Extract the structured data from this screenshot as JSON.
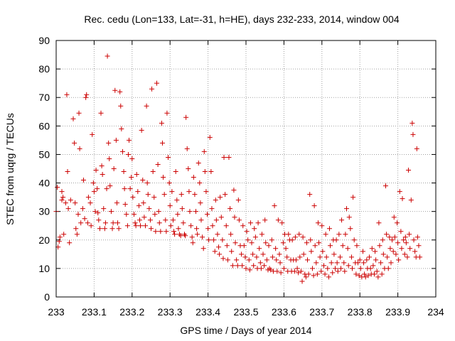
{
  "chart_data": {
    "type": "scatter",
    "title": "Rec. cedu (Lon=133, Lat=-31, h=HE), days 232-233, 2014, window 004",
    "xlabel": "GPS time / Days of year 2014",
    "ylabel": "STEC from uqrg / TECUs",
    "xlim": [
      233,
      234
    ],
    "ylim": [
      0,
      90
    ],
    "xticks": [
      233,
      233.1,
      233.2,
      233.3,
      233.4,
      233.5,
      233.6,
      233.7,
      233.8,
      233.9,
      234
    ],
    "xtick_labels": [
      "233",
      "233.1",
      "233.2",
      "233.3",
      "233.4",
      "233.5",
      "233.6",
      "233.7",
      "233.8",
      "233.9",
      "234"
    ],
    "yticks": [
      0,
      10,
      20,
      30,
      40,
      50,
      60,
      70,
      80,
      90
    ],
    "ytick_labels": [
      "0",
      "10",
      "20",
      "30",
      "40",
      "50",
      "60",
      "70",
      "80",
      "90"
    ],
    "grid": true,
    "marker": "plus",
    "marker_color": "#cc0000",
    "points": [
      [
        233.0,
        30
      ],
      [
        233.003,
        38.5
      ],
      [
        233.005,
        17.5
      ],
      [
        233.008,
        19.5
      ],
      [
        233.01,
        21
      ],
      [
        233.015,
        37
      ],
      [
        233.015,
        34
      ],
      [
        233.018,
        35
      ],
      [
        233.02,
        22
      ],
      [
        233.025,
        33
      ],
      [
        233.028,
        71
      ],
      [
        233.03,
        44
      ],
      [
        233.032,
        31
      ],
      [
        233.035,
        19
      ],
      [
        233.038,
        34
      ],
      [
        233.045,
        62.5
      ],
      [
        233.048,
        54
      ],
      [
        233.05,
        33
      ],
      [
        233.052,
        24
      ],
      [
        233.055,
        22
      ],
      [
        233.058,
        29
      ],
      [
        233.06,
        64.5
      ],
      [
        233.062,
        52
      ],
      [
        233.065,
        26
      ],
      [
        233.07,
        31
      ],
      [
        233.072,
        41
      ],
      [
        233.075,
        27.5
      ],
      [
        233.078,
        70
      ],
      [
        233.08,
        71
      ],
      [
        233.083,
        26
      ],
      [
        233.085,
        35
      ],
      [
        233.09,
        33
      ],
      [
        233.092,
        25
      ],
      [
        233.095,
        57
      ],
      [
        233.098,
        40
      ],
      [
        233.1,
        37
      ],
      [
        233.103,
        30
      ],
      [
        233.105,
        44.5
      ],
      [
        233.108,
        38
      ],
      [
        233.11,
        29.5
      ],
      [
        233.112,
        27
      ],
      [
        233.115,
        24
      ],
      [
        233.118,
        64.5
      ],
      [
        233.12,
        46
      ],
      [
        233.122,
        43
      ],
      [
        233.125,
        31
      ],
      [
        233.128,
        24
      ],
      [
        233.13,
        26
      ],
      [
        233.133,
        38
      ],
      [
        233.135,
        84.5
      ],
      [
        233.138,
        54
      ],
      [
        233.14,
        48.5
      ],
      [
        233.142,
        39
      ],
      [
        233.145,
        30
      ],
      [
        233.148,
        24
      ],
      [
        233.15,
        26
      ],
      [
        233.152,
        45
      ],
      [
        233.155,
        72.5
      ],
      [
        233.158,
        55
      ],
      [
        233.16,
        33
      ],
      [
        233.162,
        26
      ],
      [
        233.165,
        24
      ],
      [
        233.168,
        72
      ],
      [
        233.17,
        67
      ],
      [
        233.172,
        59
      ],
      [
        233.175,
        51
      ],
      [
        233.178,
        44
      ],
      [
        233.18,
        38
      ],
      [
        233.182,
        32.5
      ],
      [
        233.185,
        29
      ],
      [
        233.188,
        25
      ],
      [
        233.19,
        50
      ],
      [
        233.192,
        55
      ],
      [
        233.195,
        38
      ],
      [
        233.198,
        42
      ],
      [
        233.2,
        48.5
      ],
      [
        233.202,
        35
      ],
      [
        233.205,
        29
      ],
      [
        233.208,
        26
      ],
      [
        233.21,
        25
      ],
      [
        233.212,
        43
      ],
      [
        233.215,
        37
      ],
      [
        233.218,
        32
      ],
      [
        233.22,
        27
      ],
      [
        233.222,
        25
      ],
      [
        233.225,
        58.5
      ],
      [
        233.228,
        41
      ],
      [
        233.23,
        33
      ],
      [
        233.232,
        28
      ],
      [
        233.235,
        25
      ],
      [
        233.238,
        67
      ],
      [
        233.24,
        40
      ],
      [
        233.242,
        36
      ],
      [
        233.245,
        31
      ],
      [
        233.248,
        27
      ],
      [
        233.25,
        24
      ],
      [
        233.252,
        73
      ],
      [
        233.255,
        44
      ],
      [
        233.258,
        35
      ],
      [
        233.26,
        29
      ],
      [
        233.262,
        23
      ],
      [
        233.265,
        75
      ],
      [
        233.268,
        46.5
      ],
      [
        233.27,
        30
      ],
      [
        233.272,
        26
      ],
      [
        233.275,
        23
      ],
      [
        233.278,
        61
      ],
      [
        233.28,
        54
      ],
      [
        233.282,
        42
      ],
      [
        233.285,
        36
      ],
      [
        233.288,
        27
      ],
      [
        233.29,
        23
      ],
      [
        233.292,
        64.5
      ],
      [
        233.295,
        49
      ],
      [
        233.298,
        40
      ],
      [
        233.3,
        32
      ],
      [
        233.302,
        25
      ],
      [
        233.305,
        37
      ],
      [
        233.308,
        27
      ],
      [
        233.31,
        23
      ],
      [
        233.312,
        22
      ],
      [
        233.315,
        44
      ],
      [
        233.318,
        34
      ],
      [
        233.32,
        29
      ],
      [
        233.322,
        24
      ],
      [
        233.325,
        22
      ],
      [
        233.328,
        21.5
      ],
      [
        233.33,
        36
      ],
      [
        233.332,
        31
      ],
      [
        233.335,
        26
      ],
      [
        233.338,
        22
      ],
      [
        233.34,
        21.5
      ],
      [
        233.342,
        63
      ],
      [
        233.345,
        52
      ],
      [
        233.348,
        45
      ],
      [
        233.35,
        37
      ],
      [
        233.352,
        30
      ],
      [
        233.355,
        25
      ],
      [
        233.358,
        21
      ],
      [
        233.36,
        19
      ],
      [
        233.362,
        42
      ],
      [
        233.365,
        36
      ],
      [
        233.368,
        30
      ],
      [
        233.37,
        24
      ],
      [
        233.372,
        22
      ],
      [
        233.375,
        47
      ],
      [
        233.378,
        40
      ],
      [
        233.38,
        33
      ],
      [
        233.382,
        27
      ],
      [
        233.385,
        21
      ],
      [
        233.388,
        17
      ],
      [
        233.39,
        51
      ],
      [
        233.392,
        44
      ],
      [
        233.395,
        37
      ],
      [
        233.398,
        29
      ],
      [
        233.4,
        24
      ],
      [
        233.402,
        20
      ],
      [
        233.405,
        56
      ],
      [
        233.408,
        44
      ],
      [
        233.41,
        31
      ],
      [
        233.412,
        25
      ],
      [
        233.415,
        20
      ],
      [
        233.418,
        16
      ],
      [
        233.42,
        34
      ],
      [
        233.422,
        27
      ],
      [
        233.425,
        22
      ],
      [
        233.428,
        17.5
      ],
      [
        233.43,
        15
      ],
      [
        233.432,
        35
      ],
      [
        233.435,
        28
      ],
      [
        233.438,
        20
      ],
      [
        233.44,
        13.5
      ],
      [
        233.442,
        49
      ],
      [
        233.445,
        36
      ],
      [
        233.448,
        25
      ],
      [
        233.45,
        18
      ],
      [
        233.452,
        13
      ],
      [
        233.455,
        49
      ],
      [
        233.458,
        31
      ],
      [
        233.46,
        22
      ],
      [
        233.462,
        16
      ],
      [
        233.465,
        11
      ],
      [
        233.468,
        37.5
      ],
      [
        233.47,
        28
      ],
      [
        233.472,
        19
      ],
      [
        233.475,
        13
      ],
      [
        233.478,
        11
      ],
      [
        233.48,
        34
      ],
      [
        233.482,
        27
      ],
      [
        233.485,
        18
      ],
      [
        233.488,
        15
      ],
      [
        233.49,
        11
      ],
      [
        233.492,
        25
      ],
      [
        233.495,
        18
      ],
      [
        233.498,
        14
      ],
      [
        233.5,
        10
      ],
      [
        233.502,
        23
      ],
      [
        233.505,
        20
      ],
      [
        233.508,
        13
      ],
      [
        233.51,
        9.5
      ],
      [
        233.512,
        26
      ],
      [
        233.515,
        19
      ],
      [
        233.518,
        15
      ],
      [
        233.52,
        11
      ],
      [
        233.522,
        24
      ],
      [
        233.525,
        21
      ],
      [
        233.528,
        14
      ],
      [
        233.53,
        10
      ],
      [
        233.532,
        26
      ],
      [
        233.535,
        17
      ],
      [
        233.538,
        12
      ],
      [
        233.54,
        10
      ],
      [
        233.542,
        22
      ],
      [
        233.545,
        15
      ],
      [
        233.548,
        11
      ],
      [
        233.55,
        27
      ],
      [
        233.552,
        19
      ],
      [
        233.555,
        13
      ],
      [
        233.558,
        9.5
      ],
      [
        233.56,
        18
      ],
      [
        233.562,
        10
      ],
      [
        233.565,
        9.5
      ],
      [
        233.568,
        20
      ],
      [
        233.57,
        14
      ],
      [
        233.572,
        9
      ],
      [
        233.575,
        32
      ],
      [
        233.578,
        17
      ],
      [
        233.58,
        13
      ],
      [
        233.582,
        9
      ],
      [
        233.585,
        27
      ],
      [
        233.588,
        15
      ],
      [
        233.59,
        12
      ],
      [
        233.592,
        8.5
      ],
      [
        233.595,
        26
      ],
      [
        233.598,
        19
      ],
      [
        233.6,
        10
      ],
      [
        233.602,
        22
      ],
      [
        233.605,
        17
      ],
      [
        233.608,
        14
      ],
      [
        233.61,
        9
      ],
      [
        233.612,
        22
      ],
      [
        233.615,
        20
      ],
      [
        233.618,
        13
      ],
      [
        233.62,
        9
      ],
      [
        233.622,
        20
      ],
      [
        233.625,
        13
      ],
      [
        233.628,
        9
      ],
      [
        233.63,
        21
      ],
      [
        233.632,
        13
      ],
      [
        233.635,
        10
      ],
      [
        233.638,
        8.5
      ],
      [
        233.64,
        22
      ],
      [
        233.642,
        14
      ],
      [
        233.645,
        9
      ],
      [
        233.648,
        5.5
      ],
      [
        233.65,
        21
      ],
      [
        233.652,
        15
      ],
      [
        233.655,
        8
      ],
      [
        233.658,
        7
      ],
      [
        233.66,
        19
      ],
      [
        233.662,
        13
      ],
      [
        233.665,
        8
      ],
      [
        233.668,
        36
      ],
      [
        233.67,
        20
      ],
      [
        233.672,
        16
      ],
      [
        233.675,
        10
      ],
      [
        233.678,
        7.5
      ],
      [
        233.68,
        32
      ],
      [
        233.682,
        18
      ],
      [
        233.685,
        12
      ],
      [
        233.688,
        8
      ],
      [
        233.69,
        26
      ],
      [
        233.692,
        19
      ],
      [
        233.695,
        14
      ],
      [
        233.698,
        9
      ],
      [
        233.7,
        25
      ],
      [
        233.702,
        16
      ],
      [
        233.705,
        11
      ],
      [
        233.708,
        8
      ],
      [
        233.71,
        22
      ],
      [
        233.712,
        14
      ],
      [
        233.715,
        10
      ],
      [
        233.718,
        7
      ],
      [
        233.72,
        24
      ],
      [
        233.722,
        18
      ],
      [
        233.725,
        12
      ],
      [
        233.728,
        8.5
      ],
      [
        233.73,
        20
      ],
      [
        233.732,
        15
      ],
      [
        233.735,
        10
      ],
      [
        233.738,
        20
      ],
      [
        233.74,
        12
      ],
      [
        233.742,
        9
      ],
      [
        233.745,
        22
      ],
      [
        233.748,
        14
      ],
      [
        233.75,
        10
      ],
      [
        233.752,
        27
      ],
      [
        233.755,
        18
      ],
      [
        233.758,
        12
      ],
      [
        233.76,
        9
      ],
      [
        233.762,
        22
      ],
      [
        233.765,
        31
      ],
      [
        233.768,
        17
      ],
      [
        233.77,
        11
      ],
      [
        233.772,
        28
      ],
      [
        233.775,
        24
      ],
      [
        233.778,
        14
      ],
      [
        233.78,
        10
      ],
      [
        233.782,
        35
      ],
      [
        233.785,
        20
      ],
      [
        233.788,
        12
      ],
      [
        233.79,
        8
      ],
      [
        233.792,
        18
      ],
      [
        233.795,
        12
      ],
      [
        233.798,
        7.5
      ],
      [
        233.8,
        13
      ],
      [
        233.802,
        10
      ],
      [
        233.805,
        7
      ],
      [
        233.808,
        16
      ],
      [
        233.81,
        12
      ],
      [
        233.812,
        8
      ],
      [
        233.815,
        7
      ],
      [
        233.818,
        13
      ],
      [
        233.82,
        10
      ],
      [
        233.822,
        7.5
      ],
      [
        233.825,
        14
      ],
      [
        233.828,
        10
      ],
      [
        233.83,
        8
      ],
      [
        233.832,
        17
      ],
      [
        233.835,
        11
      ],
      [
        233.838,
        8
      ],
      [
        233.84,
        16
      ],
      [
        233.842,
        13
      ],
      [
        233.845,
        9
      ],
      [
        233.848,
        7
      ],
      [
        233.85,
        26
      ],
      [
        233.852,
        18
      ],
      [
        233.855,
        12
      ],
      [
        233.858,
        8
      ],
      [
        233.86,
        20
      ],
      [
        233.862,
        15
      ],
      [
        233.865,
        10
      ],
      [
        233.868,
        39
      ],
      [
        233.87,
        22
      ],
      [
        233.872,
        14
      ],
      [
        233.875,
        10
      ],
      [
        233.878,
        21
      ],
      [
        233.88,
        17
      ],
      [
        233.882,
        12
      ],
      [
        233.885,
        20
      ],
      [
        233.888,
        16
      ],
      [
        233.89,
        28
      ],
      [
        233.892,
        21
      ],
      [
        233.895,
        15
      ],
      [
        233.898,
        26
      ],
      [
        233.9,
        19
      ],
      [
        233.902,
        13
      ],
      [
        233.905,
        37
      ],
      [
        233.908,
        23
      ],
      [
        233.91,
        17
      ],
      [
        233.912,
        34.5
      ],
      [
        233.915,
        20
      ],
      [
        233.918,
        15
      ],
      [
        233.92,
        21
      ],
      [
        233.922,
        19
      ],
      [
        233.925,
        14
      ],
      [
        233.928,
        44.5
      ],
      [
        233.93,
        22
      ],
      [
        233.932,
        17
      ],
      [
        233.935,
        34
      ],
      [
        233.938,
        61
      ],
      [
        233.94,
        57
      ],
      [
        233.942,
        20
      ],
      [
        233.945,
        16
      ],
      [
        233.948,
        14
      ],
      [
        233.95,
        52
      ],
      [
        233.952,
        21
      ],
      [
        233.955,
        18
      ],
      [
        233.958,
        14
      ]
    ]
  }
}
